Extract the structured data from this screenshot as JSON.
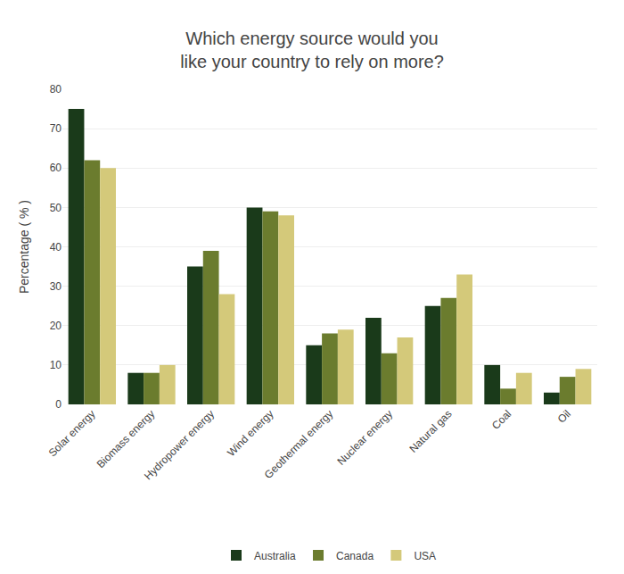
{
  "chart_data": {
    "type": "bar",
    "title": "Which energy source would you\nlike your country to rely on more?",
    "categories": [
      "Solar energy",
      "Biomass energy",
      "Hydropower energy",
      "Wind energy",
      "Geothermal energy",
      "Nuclear energy",
      "Natural gas",
      "Coal",
      "Oil"
    ],
    "series": [
      {
        "name": "Australia",
        "color": "#1a3a1a",
        "values": [
          75,
          8,
          35,
          50,
          15,
          22,
          25,
          10,
          3
        ]
      },
      {
        "name": "Canada",
        "color": "#6b7c2e",
        "values": [
          62,
          8,
          39,
          49,
          18,
          13,
          27,
          4,
          7
        ]
      },
      {
        "name": "USA",
        "color": "#d4c97a",
        "values": [
          60,
          10,
          28,
          48,
          19,
          17,
          33,
          8,
          9
        ]
      }
    ],
    "ylabel": "Percentage ( % )",
    "ylim": [
      0,
      80
    ],
    "yticks": [
      0,
      10,
      20,
      30,
      40,
      50,
      60,
      70,
      80
    ],
    "grid": true,
    "legend": "bottom"
  }
}
